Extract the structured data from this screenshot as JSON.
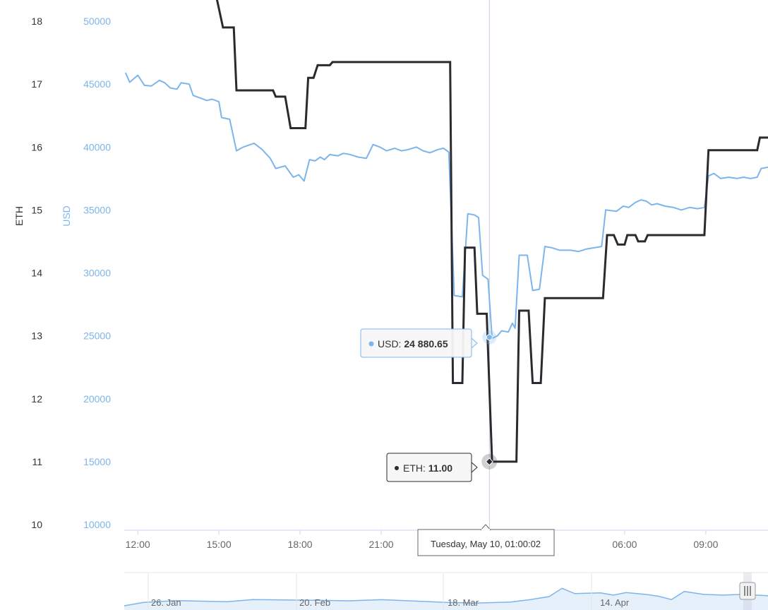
{
  "colors": {
    "eth": "#2b2b2f",
    "usd": "#7cb5ec",
    "axis_text": "#333333",
    "x_text": "#666666",
    "crosshair": "#c3cfe6",
    "nav_line": "#7cb5ec",
    "nav_fill": "#e6f0fa"
  },
  "icons": {
    "navigator_handle": "scrollbar-handle-icon",
    "eth_marker": "diamond-marker-icon",
    "usd_marker": "circle-marker-icon"
  },
  "chart_data": {
    "type": "line",
    "y_left_label": "ETH",
    "y_right_label": "USD",
    "eth_ticks": [
      "18",
      "17",
      "16",
      "15",
      "14",
      "13",
      "12",
      "11",
      "10"
    ],
    "usd_ticks": [
      "50000",
      "45000",
      "40000",
      "35000",
      "30000",
      "25000",
      "20000",
      "15000",
      "10000"
    ],
    "eth_range": [
      10,
      18
    ],
    "usd_range": [
      10000,
      50000
    ],
    "x_tick_labels": [
      "12:00",
      "15:00",
      "18:00",
      "21:00",
      "06:00",
      "09:00"
    ],
    "x_hours_range": [
      11.5,
      35.3
    ],
    "series": [
      {
        "name": "ETH",
        "axis": "ETH",
        "points": [
          [
            14.9,
            18.4
          ],
          [
            15.15,
            17.9
          ],
          [
            15.55,
            17.9
          ],
          [
            15.65,
            16.9
          ],
          [
            17.0,
            16.9
          ],
          [
            17.1,
            16.8
          ],
          [
            17.45,
            16.8
          ],
          [
            17.65,
            16.3
          ],
          [
            18.2,
            16.3
          ],
          [
            18.3,
            17.1
          ],
          [
            18.5,
            17.1
          ],
          [
            18.65,
            17.3
          ],
          [
            19.1,
            17.3
          ],
          [
            19.2,
            17.35
          ],
          [
            23.55,
            17.35
          ],
          [
            23.65,
            12.25
          ],
          [
            24.0,
            12.25
          ],
          [
            24.1,
            14.4
          ],
          [
            24.45,
            14.4
          ],
          [
            24.55,
            13.35
          ],
          [
            24.9,
            13.35
          ],
          [
            25.1,
            11.0
          ],
          [
            26.0,
            11.0
          ],
          [
            26.1,
            13.4
          ],
          [
            26.45,
            13.4
          ],
          [
            26.6,
            12.25
          ],
          [
            26.9,
            12.25
          ],
          [
            27.05,
            13.6
          ],
          [
            28.3,
            13.6
          ],
          [
            28.45,
            13.6
          ],
          [
            29.2,
            13.6
          ],
          [
            29.35,
            14.6
          ],
          [
            29.6,
            14.6
          ],
          [
            29.75,
            14.45
          ],
          [
            30.0,
            14.45
          ],
          [
            30.1,
            14.6
          ],
          [
            30.4,
            14.6
          ],
          [
            30.5,
            14.5
          ],
          [
            30.75,
            14.5
          ],
          [
            30.85,
            14.6
          ],
          [
            32.95,
            14.6
          ],
          [
            33.1,
            15.95
          ],
          [
            34.9,
            15.95
          ],
          [
            35.0,
            16.15
          ],
          [
            35.3,
            16.15
          ]
        ]
      },
      {
        "name": "USD",
        "axis": "USD",
        "points": [
          [
            11.55,
            45900
          ],
          [
            11.7,
            45150
          ],
          [
            12.0,
            45700
          ],
          [
            12.25,
            44900
          ],
          [
            12.5,
            44850
          ],
          [
            12.8,
            45300
          ],
          [
            13.0,
            45100
          ],
          [
            13.2,
            44700
          ],
          [
            13.45,
            44600
          ],
          [
            13.6,
            45100
          ],
          [
            13.9,
            45000
          ],
          [
            14.05,
            44100
          ],
          [
            14.3,
            43900
          ],
          [
            14.55,
            43700
          ],
          [
            14.75,
            43800
          ],
          [
            15.0,
            43600
          ],
          [
            15.1,
            42350
          ],
          [
            15.4,
            42200
          ],
          [
            15.65,
            39700
          ],
          [
            15.9,
            40000
          ],
          [
            16.3,
            40300
          ],
          [
            16.6,
            39800
          ],
          [
            16.9,
            39100
          ],
          [
            17.1,
            38300
          ],
          [
            17.45,
            38500
          ],
          [
            17.75,
            37600
          ],
          [
            17.95,
            37800
          ],
          [
            18.15,
            37300
          ],
          [
            18.35,
            39000
          ],
          [
            18.55,
            38900
          ],
          [
            18.75,
            39200
          ],
          [
            18.9,
            39000
          ],
          [
            19.1,
            39400
          ],
          [
            19.4,
            39300
          ],
          [
            19.6,
            39500
          ],
          [
            19.85,
            39400
          ],
          [
            20.15,
            39200
          ],
          [
            20.45,
            39100
          ],
          [
            20.7,
            40200
          ],
          [
            20.95,
            40000
          ],
          [
            21.2,
            39700
          ],
          [
            21.5,
            39900
          ],
          [
            21.75,
            39700
          ],
          [
            22.0,
            39800
          ],
          [
            22.3,
            40000
          ],
          [
            22.55,
            39700
          ],
          [
            22.8,
            39550
          ],
          [
            23.1,
            39800
          ],
          [
            23.3,
            39900
          ],
          [
            23.5,
            39600
          ],
          [
            23.7,
            28200
          ],
          [
            24.0,
            28100
          ],
          [
            24.2,
            34700
          ],
          [
            24.45,
            34600
          ],
          [
            24.6,
            34400
          ],
          [
            24.75,
            29800
          ],
          [
            24.95,
            29500
          ],
          [
            25.1,
            24800
          ],
          [
            25.3,
            25000
          ],
          [
            25.45,
            25400
          ],
          [
            25.7,
            25300
          ],
          [
            25.85,
            26000
          ],
          [
            25.95,
            25600
          ],
          [
            26.1,
            31400
          ],
          [
            26.4,
            31400
          ],
          [
            26.6,
            28600
          ],
          [
            26.85,
            28700
          ],
          [
            27.05,
            32100
          ],
          [
            27.3,
            32000
          ],
          [
            27.6,
            31800
          ],
          [
            28.0,
            31800
          ],
          [
            28.3,
            31700
          ],
          [
            28.6,
            31900
          ],
          [
            28.9,
            32000
          ],
          [
            29.15,
            32100
          ],
          [
            29.3,
            35000
          ],
          [
            29.7,
            34900
          ],
          [
            29.95,
            35300
          ],
          [
            30.15,
            35200
          ],
          [
            30.4,
            35600
          ],
          [
            30.6,
            35800
          ],
          [
            30.8,
            35700
          ],
          [
            31.0,
            35400
          ],
          [
            31.2,
            35500
          ],
          [
            31.5,
            35300
          ],
          [
            31.8,
            35200
          ],
          [
            32.1,
            35000
          ],
          [
            32.4,
            35200
          ],
          [
            32.7,
            35100
          ],
          [
            32.95,
            35200
          ],
          [
            33.1,
            37700
          ],
          [
            33.3,
            37900
          ],
          [
            33.55,
            37500
          ],
          [
            33.85,
            37600
          ],
          [
            34.15,
            37500
          ],
          [
            34.4,
            37600
          ],
          [
            34.65,
            37500
          ],
          [
            34.9,
            37600
          ],
          [
            35.05,
            38300
          ],
          [
            35.3,
            38400
          ]
        ]
      }
    ],
    "tooltip_usd_label": "USD:",
    "tooltip_usd_value": "24 880.65",
    "tooltip_eth_label": "ETH:",
    "tooltip_eth_value": "11.00",
    "crosshair_label": "Tuesday, May 10, 01:00:02",
    "crosshair_hour": 25.0,
    "navigator_labels": [
      "26. Jan",
      "20. Feb",
      "18. Mar",
      "14. Apr"
    ],
    "navigator_values": [
      [
        0.0,
        0.0
      ],
      [
        0.03,
        0.18
      ],
      [
        0.08,
        0.28
      ],
      [
        0.12,
        0.25
      ],
      [
        0.16,
        0.22
      ],
      [
        0.2,
        0.34
      ],
      [
        0.25,
        0.32
      ],
      [
        0.3,
        0.3
      ],
      [
        0.35,
        0.27
      ],
      [
        0.4,
        0.33
      ],
      [
        0.45,
        0.26
      ],
      [
        0.5,
        0.18
      ],
      [
        0.55,
        0.15
      ],
      [
        0.6,
        0.2
      ],
      [
        0.63,
        0.33
      ],
      [
        0.66,
        0.5
      ],
      [
        0.68,
        0.95
      ],
      [
        0.7,
        0.66
      ],
      [
        0.74,
        0.7
      ],
      [
        0.76,
        0.58
      ],
      [
        0.78,
        0.72
      ],
      [
        0.81,
        0.62
      ],
      [
        0.83,
        0.52
      ],
      [
        0.85,
        0.34
      ],
      [
        0.87,
        0.78
      ],
      [
        0.9,
        0.62
      ],
      [
        0.93,
        0.58
      ],
      [
        0.96,
        0.62
      ],
      [
        1.0,
        0.55
      ]
    ]
  }
}
